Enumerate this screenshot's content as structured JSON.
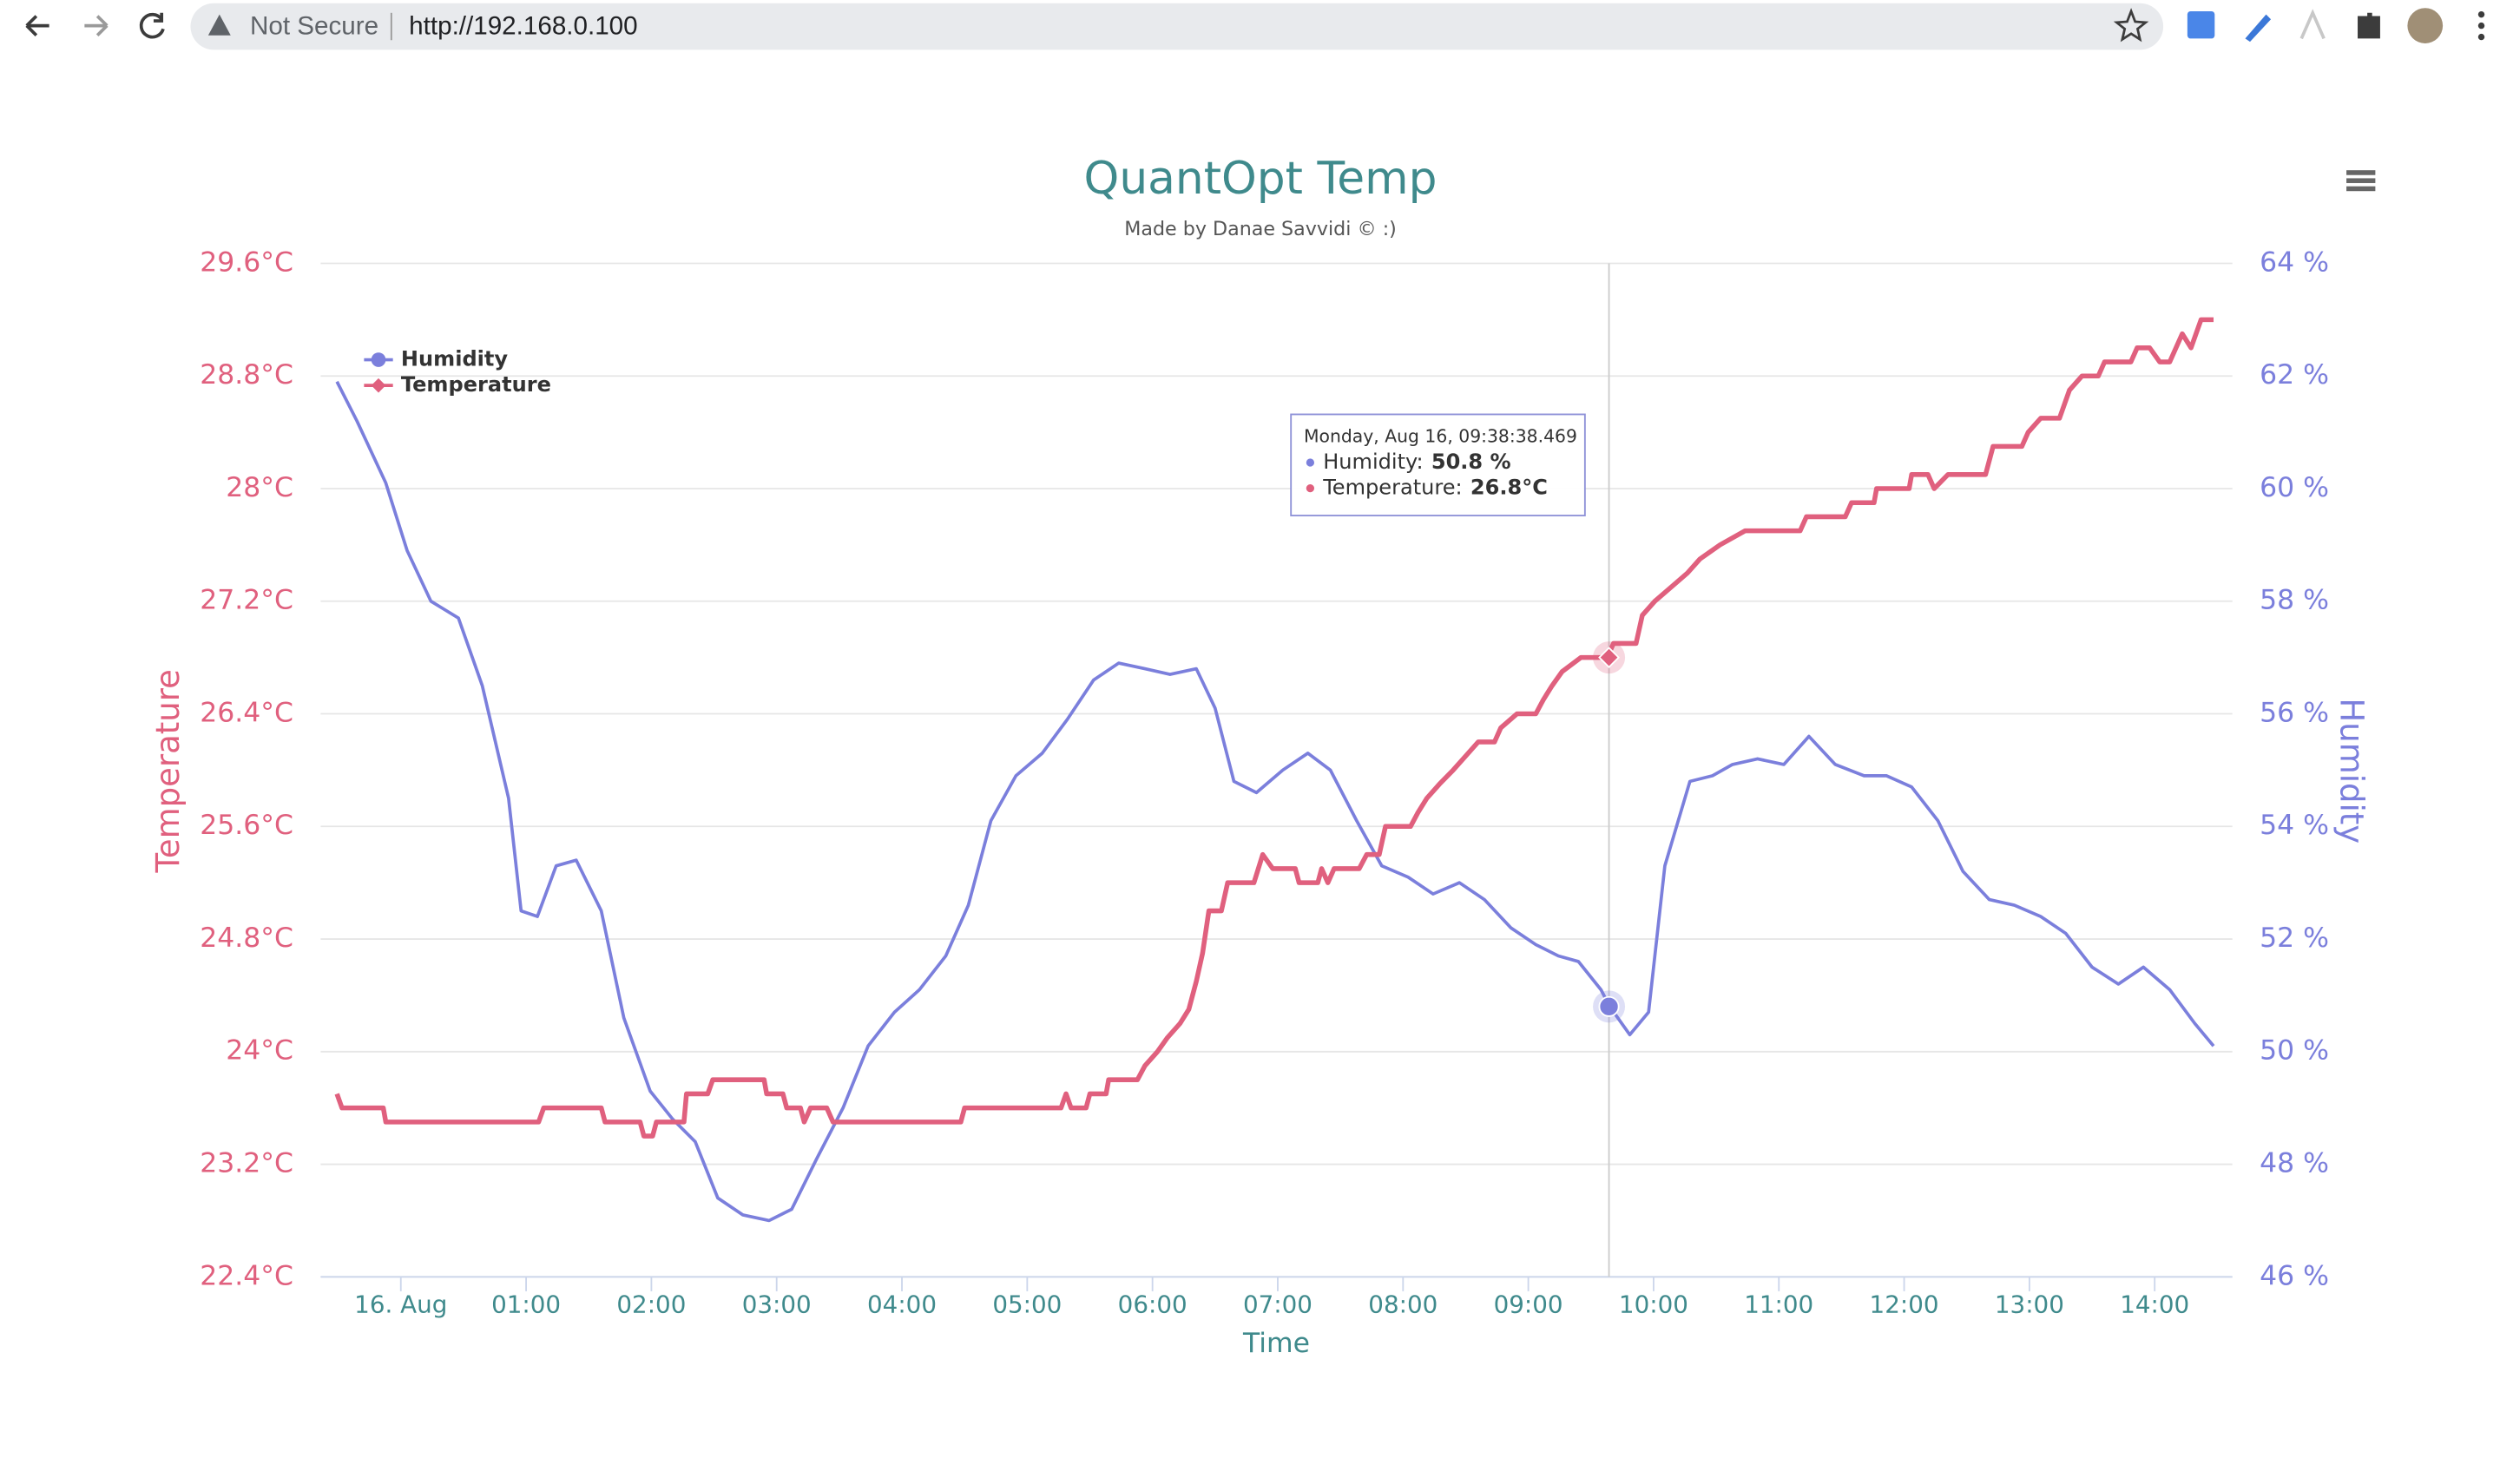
{
  "browser": {
    "security": "Not Secure",
    "url": "http://192.168.0.100"
  },
  "chart_data": {
    "type": "line",
    "title": "QuantOpt Temp",
    "subtitle": "Made by Danae Savvidi © :)",
    "xlabel": "Time",
    "ylabel": "Temperature",
    "y2label": "Humidity",
    "xlim": [
      -0.64,
      14.62
    ],
    "xticks": [
      {
        "value": 0,
        "label": "16. Aug"
      },
      {
        "value": 1,
        "label": "01:00"
      },
      {
        "value": 2,
        "label": "02:00"
      },
      {
        "value": 3,
        "label": "03:00"
      },
      {
        "value": 4,
        "label": "04:00"
      },
      {
        "value": 5,
        "label": "05:00"
      },
      {
        "value": 6,
        "label": "06:00"
      },
      {
        "value": 7,
        "label": "07:00"
      },
      {
        "value": 8,
        "label": "08:00"
      },
      {
        "value": 9,
        "label": "09:00"
      },
      {
        "value": 10,
        "label": "10:00"
      },
      {
        "value": 11,
        "label": "11:00"
      },
      {
        "value": 12,
        "label": "12:00"
      },
      {
        "value": 13,
        "label": "13:00"
      },
      {
        "value": 14,
        "label": "14:00"
      }
    ],
    "ylim": [
      22.4,
      29.6
    ],
    "yticks": [
      {
        "value": 22.4,
        "label": "22.4°C"
      },
      {
        "value": 23.2,
        "label": "23.2°C"
      },
      {
        "value": 24,
        "label": "24°C"
      },
      {
        "value": 24.8,
        "label": "24.8°C"
      },
      {
        "value": 25.6,
        "label": "25.6°C"
      },
      {
        "value": 26.4,
        "label": "26.4°C"
      },
      {
        "value": 27.2,
        "label": "27.2°C"
      },
      {
        "value": 28,
        "label": "28°C"
      },
      {
        "value": 28.8,
        "label": "28.8°C"
      },
      {
        "value": 29.6,
        "label": "29.6°C"
      }
    ],
    "y2lim": [
      46,
      64
    ],
    "y2ticks": [
      {
        "value": 46,
        "label": "46 %"
      },
      {
        "value": 48,
        "label": "48 %"
      },
      {
        "value": 50,
        "label": "50 %"
      },
      {
        "value": 52,
        "label": "52 %"
      },
      {
        "value": 54,
        "label": "54 %"
      },
      {
        "value": 56,
        "label": "56 %"
      },
      {
        "value": 58,
        "label": "58 %"
      },
      {
        "value": 60,
        "label": "60 %"
      },
      {
        "value": 62,
        "label": "62 %"
      },
      {
        "value": 64,
        "label": "64 %"
      }
    ],
    "grid": true,
    "legend": "top-left",
    "series": [
      {
        "name": "Humidity",
        "color": "#7b7fdc",
        "axis": "y2",
        "marker": "circle",
        "x": [
          -0.51,
          -0.35,
          -0.12,
          0.05,
          0.24,
          0.46,
          0.65,
          0.86,
          0.96,
          1.09,
          1.24,
          1.4,
          1.6,
          1.78,
          1.99,
          2.17,
          2.35,
          2.53,
          2.73,
          2.94,
          3.12,
          3.32,
          3.53,
          3.73,
          3.94,
          4.14,
          4.35,
          4.53,
          4.71,
          4.91,
          5.12,
          5.32,
          5.53,
          5.73,
          5.94,
          6.14,
          6.35,
          6.5,
          6.65,
          6.83,
          7.04,
          7.24,
          7.42,
          7.63,
          7.83,
          8.04,
          8.24,
          8.45,
          8.65,
          8.86,
          9.06,
          9.24,
          9.4,
          9.58,
          9.65,
          9.81,
          9.96,
          10.09,
          10.29,
          10.47,
          10.63,
          10.83,
          11.04,
          11.24,
          11.45,
          11.68,
          11.86,
          12.06,
          12.27,
          12.47,
          12.68,
          12.88,
          13.09,
          13.29,
          13.5,
          13.71,
          13.91,
          14.12,
          14.32,
          14.47
        ],
        "values": [
          61.9,
          61.2,
          60.1,
          58.9,
          58.0,
          57.7,
          56.5,
          54.5,
          52.5,
          52.4,
          53.3,
          53.4,
          52.5,
          50.6,
          49.3,
          48.8,
          48.4,
          47.4,
          47.1,
          47.0,
          47.2,
          48.1,
          49.0,
          50.1,
          50.7,
          51.1,
          51.7,
          52.6,
          54.1,
          54.9,
          55.3,
          55.9,
          56.6,
          56.9,
          56.8,
          56.7,
          56.8,
          56.1,
          54.8,
          54.6,
          55.0,
          55.3,
          55.0,
          54.1,
          53.3,
          53.1,
          52.8,
          53.0,
          52.7,
          52.2,
          51.9,
          51.7,
          51.6,
          51.1,
          50.8,
          50.3,
          50.7,
          53.3,
          54.8,
          54.9,
          55.1,
          55.2,
          55.1,
          55.6,
          55.1,
          54.9,
          54.9,
          54.7,
          54.1,
          53.2,
          52.7,
          52.6,
          52.4,
          52.1,
          51.5,
          51.2,
          51.5,
          51.1,
          50.5,
          50.1
        ]
      },
      {
        "name": "Temperature",
        "color": "#e0607e",
        "axis": "y",
        "marker": "diamond",
        "x": [
          -0.51,
          -0.47,
          -0.14,
          -0.12,
          1.1,
          1.14,
          1.6,
          1.63,
          1.91,
          1.94,
          2.01,
          2.04,
          2.26,
          2.28,
          2.45,
          2.49,
          2.9,
          2.92,
          3.05,
          3.08,
          3.19,
          3.22,
          3.27,
          3.4,
          3.45,
          4.47,
          4.5,
          5.27,
          5.31,
          5.35,
          5.47,
          5.5,
          5.63,
          5.65,
          5.88,
          5.94,
          6.04,
          6.12,
          6.22,
          6.29,
          6.35,
          6.4,
          6.45,
          6.55,
          6.6,
          6.81,
          6.88,
          6.96,
          7.14,
          7.17,
          7.32,
          7.35,
          7.4,
          7.45,
          7.65,
          7.71,
          7.81,
          7.86,
          8.06,
          8.12,
          8.19,
          8.29,
          8.4,
          8.5,
          8.6,
          8.73,
          8.78,
          8.91,
          9.06,
          9.12,
          9.19,
          9.27,
          9.42,
          9.63,
          9.68,
          9.86,
          9.91,
          10.01,
          10.14,
          10.27,
          10.37,
          10.53,
          10.73,
          11.17,
          11.22,
          11.53,
          11.58,
          11.76,
          11.78,
          12.04,
          12.06,
          12.19,
          12.24,
          12.35,
          12.65,
          12.71,
          12.94,
          12.99,
          13.09,
          13.24,
          13.32,
          13.42,
          13.55,
          13.6,
          13.81,
          13.86,
          13.96,
          14.04,
          14.12,
          14.22,
          14.29,
          14.37,
          14.47
        ],
        "values": [
          23.7,
          23.6,
          23.6,
          23.5,
          23.5,
          23.6,
          23.6,
          23.5,
          23.5,
          23.4,
          23.4,
          23.5,
          23.5,
          23.7,
          23.7,
          23.8,
          23.8,
          23.7,
          23.7,
          23.6,
          23.6,
          23.5,
          23.6,
          23.6,
          23.5,
          23.5,
          23.6,
          23.6,
          23.7,
          23.6,
          23.6,
          23.7,
          23.7,
          23.8,
          23.8,
          23.9,
          24.0,
          24.1,
          24.2,
          24.3,
          24.5,
          24.7,
          25.0,
          25.0,
          25.2,
          25.2,
          25.4,
          25.3,
          25.3,
          25.2,
          25.2,
          25.3,
          25.2,
          25.3,
          25.3,
          25.4,
          25.4,
          25.6,
          25.6,
          25.7,
          25.8,
          25.9,
          26.0,
          26.1,
          26.2,
          26.2,
          26.3,
          26.4,
          26.4,
          26.5,
          26.6,
          26.7,
          26.8,
          26.8,
          26.9,
          26.9,
          27.1,
          27.2,
          27.3,
          27.4,
          27.5,
          27.6,
          27.7,
          27.7,
          27.8,
          27.8,
          27.9,
          27.9,
          28.0,
          28.0,
          28.1,
          28.1,
          28.0,
          28.1,
          28.1,
          28.3,
          28.3,
          28.4,
          28.5,
          28.5,
          28.7,
          28.8,
          28.8,
          28.9,
          28.9,
          29.0,
          29.0,
          28.9,
          28.9,
          29.1,
          29.0,
          29.2,
          29.2
        ]
      }
    ],
    "tooltip": {
      "title": "Monday, Aug 16, 09:38:38.469",
      "x": 9.644,
      "items": [
        {
          "label": "Humidity:",
          "value": 50.8,
          "value_label": "50.8 %"
        },
        {
          "label": "Temperature:",
          "value": 26.8,
          "value_label": "26.8°C"
        }
      ]
    }
  }
}
